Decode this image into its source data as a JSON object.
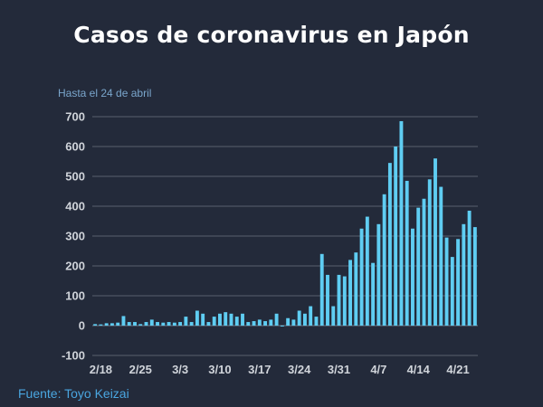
{
  "header": {
    "title": "Casos de coronavirus en Japón",
    "subtitle": "Hasta el 24 de abril",
    "source": "Fuente: Toyo Keizai"
  },
  "colors": {
    "background": "#232a3a",
    "bar": "#5fcdf2",
    "grid": "#59606e",
    "tick_text": "#d0d4da",
    "title": "#ffffff"
  },
  "chart_data": {
    "type": "bar",
    "title": "Casos de coronavirus en Japón",
    "subtitle": "Hasta el 24 de abril",
    "xlabel": "",
    "ylabel": "",
    "ylim": [
      -100,
      700
    ],
    "yticks": [
      -100,
      0,
      100,
      200,
      300,
      400,
      500,
      600,
      700
    ],
    "grid": true,
    "legend": "none",
    "xtick_labels": [
      "2/18",
      "2/25",
      "3/3",
      "3/10",
      "3/17",
      "3/24",
      "3/31",
      "4/7",
      "4/14",
      "4/21"
    ],
    "xtick_categories": [
      "2/18",
      "2/25",
      "3/3",
      "3/10",
      "3/17",
      "3/24",
      "3/31",
      "4/7",
      "4/14",
      "4/21"
    ],
    "categories": [
      "2/17",
      "2/18",
      "2/19",
      "2/20",
      "2/21",
      "2/22",
      "2/23",
      "2/24",
      "2/25",
      "2/26",
      "2/27",
      "2/28",
      "2/29",
      "3/1",
      "3/2",
      "3/3",
      "3/4",
      "3/5",
      "3/6",
      "3/7",
      "3/8",
      "3/9",
      "3/10",
      "3/11",
      "3/12",
      "3/13",
      "3/14",
      "3/15",
      "3/16",
      "3/17",
      "3/18",
      "3/19",
      "3/20",
      "3/21",
      "3/22",
      "3/23",
      "3/24",
      "3/25",
      "3/26",
      "3/27",
      "3/28",
      "3/29",
      "3/30",
      "3/31",
      "4/1",
      "4/2",
      "4/3",
      "4/4",
      "4/5",
      "4/6",
      "4/7",
      "4/8",
      "4/9",
      "4/10",
      "4/11",
      "4/12",
      "4/13",
      "4/14",
      "4/15",
      "4/16",
      "4/17",
      "4/18",
      "4/19",
      "4/20",
      "4/21",
      "4/22",
      "4/23",
      "4/24"
    ],
    "values": [
      5,
      4,
      8,
      8,
      10,
      32,
      12,
      12,
      5,
      12,
      20,
      12,
      10,
      12,
      10,
      12,
      30,
      12,
      50,
      40,
      12,
      30,
      40,
      45,
      40,
      30,
      40,
      12,
      15,
      20,
      15,
      20,
      40,
      -2,
      25,
      20,
      50,
      40,
      65,
      30,
      240,
      170,
      65,
      170,
      165,
      220,
      245,
      325,
      365,
      210,
      340,
      440,
      545,
      600,
      685,
      485,
      325,
      395,
      425,
      490,
      560,
      465,
      295,
      230,
      290,
      340,
      385,
      330
    ]
  }
}
